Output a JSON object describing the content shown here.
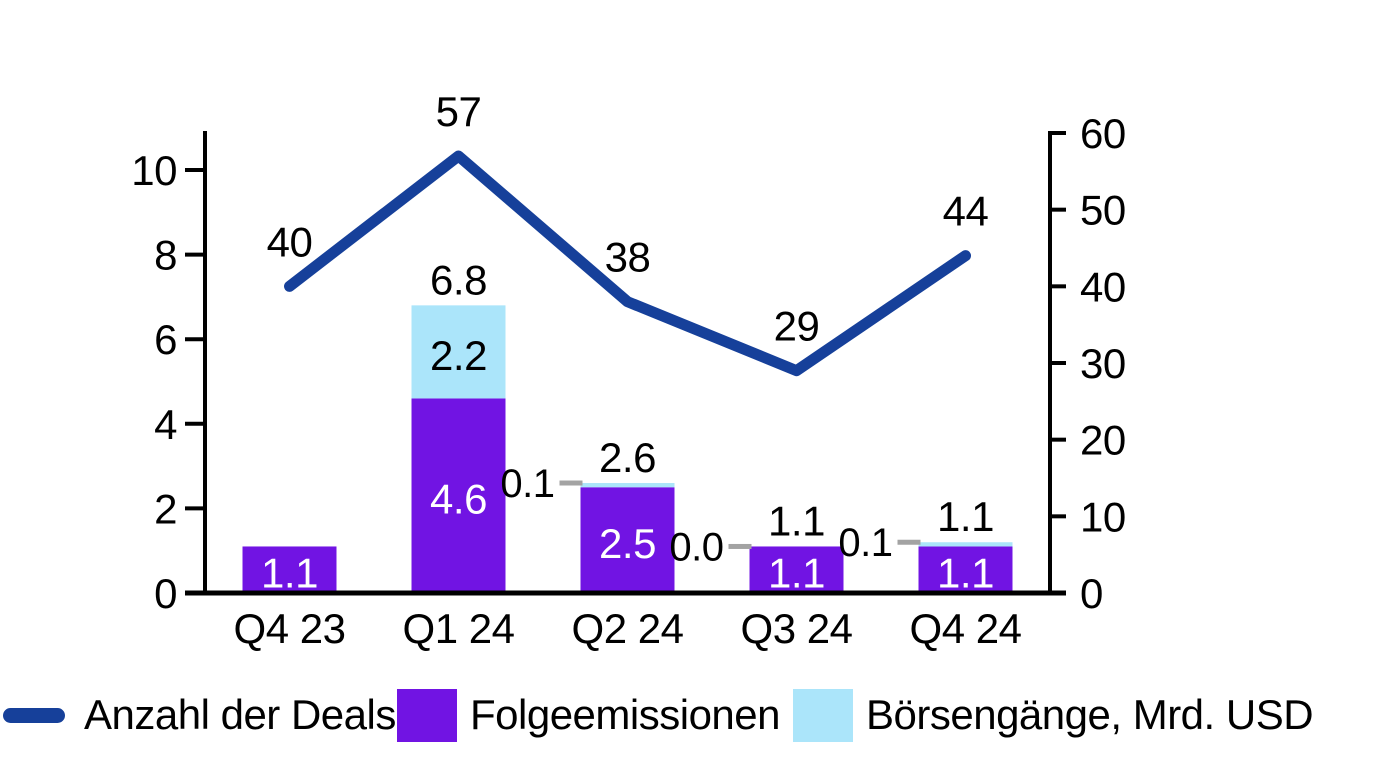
{
  "chart_data": {
    "type": "combo",
    "title": "",
    "categories": [
      "Q4 23",
      "Q1 24",
      "Q2 24",
      "Q3 24",
      "Q4 24"
    ],
    "series": [
      {
        "name": "Anzahl der Deals",
        "type": "line",
        "axis": "right",
        "color": "#16409A",
        "values": [
          40,
          57,
          38,
          29,
          44
        ],
        "point_labels": [
          "40",
          "57",
          "38",
          "29",
          "44"
        ]
      },
      {
        "name": "Folgeemissionen",
        "type": "bar",
        "stack": "emissions",
        "axis": "left",
        "color": "#7114E3",
        "values": [
          1.1,
          4.6,
          2.5,
          1.1,
          1.1
        ],
        "bar_labels": [
          "1.1",
          "4.6",
          "2.5",
          "1.1",
          "1.1"
        ],
        "label_color": "#ffffff"
      },
      {
        "name": "Börsengänge, Mrd. USD",
        "type": "bar",
        "stack": "emissions",
        "axis": "left",
        "color": "#ABE5FA",
        "values": [
          null,
          2.2,
          0.1,
          0.0,
          0.1
        ],
        "bar_labels": [
          "",
          "2.2",
          "",
          "",
          ""
        ],
        "outside_labels": [
          "",
          "",
          "0.1",
          "0.0",
          "0.1"
        ],
        "label_color": "#000000"
      }
    ],
    "stack_total_labels": [
      "",
      "6.8",
      "2.6",
      "1.1",
      "1.1"
    ],
    "left_axis": {
      "range": [
        0,
        10
      ],
      "ticks": [
        "0",
        "2",
        "4",
        "6",
        "8",
        "10"
      ]
    },
    "right_axis": {
      "range": [
        0,
        60
      ],
      "ticks": [
        "0",
        "10",
        "20",
        "30",
        "40",
        "50",
        "60"
      ]
    },
    "grid": "off",
    "legend_position": "bottom",
    "leader_dash_color": "#A3A3A3",
    "axis_color": "#000000"
  },
  "legend": {
    "items": [
      {
        "label": "Anzahl der Deals",
        "swatch": "line",
        "color": "#16409A"
      },
      {
        "label": "Folgeemissionen",
        "swatch": "square",
        "color": "#7114E3"
      },
      {
        "label": "Börsengänge, Mrd. USD",
        "swatch": "square",
        "color": "#ABE5FA"
      }
    ]
  }
}
